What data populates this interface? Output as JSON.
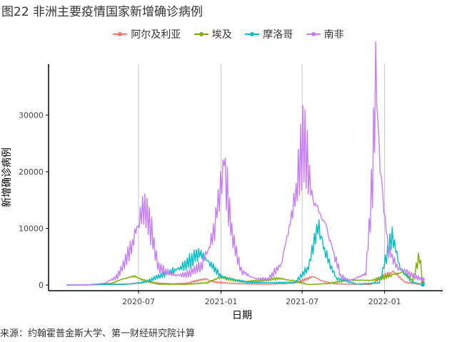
{
  "figure": {
    "title": "图22 非洲主要疫情国家新增确诊病例",
    "source": "来源：约翰霍普金斯大学、第一财经研究院计算"
  },
  "chart_data": {
    "type": "line",
    "xlabel": "日期",
    "ylabel": "新增确诊病例",
    "x_range": [
      "2020-01-22",
      "2022-03-27"
    ],
    "ylim": [
      -1000,
      39000
    ],
    "x_ticks": [
      {
        "date": "2020-07-01",
        "label": "2020-07"
      },
      {
        "date": "2021-01-01",
        "label": "2021-01"
      },
      {
        "date": "2021-07-01",
        "label": "2021-07"
      },
      {
        "date": "2022-01-01",
        "label": "2022-01"
      }
    ],
    "y_ticks": [
      0,
      10000,
      20000,
      30000
    ],
    "grid": "vertical major lines at x ticks",
    "legend_position": "top",
    "series": [
      {
        "name": "阿尔及利亚",
        "color": "#F8766D",
        "points": [
          [
            "2020-01-22",
            0
          ],
          [
            "2020-03-15",
            30
          ],
          [
            "2020-05-01",
            150
          ],
          [
            "2020-06-15",
            200
          ],
          [
            "2020-07-20",
            650
          ],
          [
            "2020-08-10",
            350
          ],
          [
            "2020-09-15",
            200
          ],
          [
            "2020-10-20",
            350
          ],
          [
            "2020-11-25",
            1100
          ],
          [
            "2020-12-20",
            500
          ],
          [
            "2021-02-01",
            250
          ],
          [
            "2021-04-15",
            150
          ],
          [
            "2021-06-15",
            350
          ],
          [
            "2021-07-25",
            1500
          ],
          [
            "2021-08-15",
            700
          ],
          [
            "2021-09-15",
            200
          ],
          [
            "2021-12-01",
            100
          ],
          [
            "2022-01-20",
            2500
          ],
          [
            "2022-02-15",
            500
          ],
          [
            "2022-03-27",
            50
          ]
        ]
      },
      {
        "name": "埃及",
        "color": "#7CAE00",
        "points": [
          [
            "2020-01-22",
            0
          ],
          [
            "2020-03-15",
            20
          ],
          [
            "2020-05-01",
            300
          ],
          [
            "2020-06-01",
            1200
          ],
          [
            "2020-06-20",
            1550
          ],
          [
            "2020-07-15",
            800
          ],
          [
            "2020-08-15",
            150
          ],
          [
            "2020-10-15",
            120
          ],
          [
            "2020-12-01",
            400
          ],
          [
            "2020-12-31",
            1400
          ],
          [
            "2021-02-15",
            600
          ],
          [
            "2021-04-01",
            800
          ],
          [
            "2021-05-10",
            1200
          ],
          [
            "2021-06-15",
            700
          ],
          [
            "2021-07-15",
            80
          ],
          [
            "2021-09-01",
            300
          ],
          [
            "2021-10-15",
            900
          ],
          [
            "2021-12-01",
            800
          ],
          [
            "2022-01-20",
            1800
          ],
          [
            "2022-02-10",
            2300
          ],
          [
            "2022-03-05",
            800
          ],
          [
            "2022-03-20",
            5500
          ],
          [
            "2022-03-27",
            400
          ]
        ]
      },
      {
        "name": "摩洛哥",
        "color": "#00BFC4",
        "points": [
          [
            "2020-01-22",
            0
          ],
          [
            "2020-04-01",
            80
          ],
          [
            "2020-06-01",
            100
          ],
          [
            "2020-07-15",
            500
          ],
          [
            "2020-08-15",
            1500
          ],
          [
            "2020-09-15",
            2500
          ],
          [
            "2020-10-15",
            3600
          ],
          [
            "2020-11-12",
            5800
          ],
          [
            "2020-12-05",
            4000
          ],
          [
            "2021-01-01",
            1500
          ],
          [
            "2021-03-01",
            450
          ],
          [
            "2021-05-01",
            400
          ],
          [
            "2021-06-15",
            500
          ],
          [
            "2021-07-15",
            3000
          ],
          [
            "2021-08-05",
            10500
          ],
          [
            "2021-08-25",
            5000
          ],
          [
            "2021-09-15",
            1200
          ],
          [
            "2021-11-01",
            150
          ],
          [
            "2021-12-20",
            400
          ],
          [
            "2022-01-05",
            5000
          ],
          [
            "2022-01-18",
            9000
          ],
          [
            "2022-02-05",
            3000
          ],
          [
            "2022-03-01",
            600
          ],
          [
            "2022-03-27",
            100
          ]
        ]
      },
      {
        "name": "南非",
        "color": "#C77CFF",
        "points": [
          [
            "2020-01-22",
            0
          ],
          [
            "2020-03-10",
            50
          ],
          [
            "2020-04-15",
            300
          ],
          [
            "2020-05-15",
            1500
          ],
          [
            "2020-06-15",
            6500
          ],
          [
            "2020-07-10",
            13500
          ],
          [
            "2020-07-25",
            11000
          ],
          [
            "2020-08-15",
            3000
          ],
          [
            "2020-09-15",
            1800
          ],
          [
            "2020-10-15",
            1800
          ],
          [
            "2020-11-20",
            3500
          ],
          [
            "2020-12-15",
            9000
          ],
          [
            "2021-01-08",
            21900
          ],
          [
            "2021-01-25",
            9000
          ],
          [
            "2021-02-15",
            2500
          ],
          [
            "2021-03-15",
            1200
          ],
          [
            "2021-04-15",
            1000
          ],
          [
            "2021-05-15",
            3500
          ],
          [
            "2021-06-15",
            15000
          ],
          [
            "2021-07-05",
            26400
          ],
          [
            "2021-07-25",
            15000
          ],
          [
            "2021-08-15",
            12000
          ],
          [
            "2021-09-05",
            7000
          ],
          [
            "2021-09-25",
            1500
          ],
          [
            "2021-10-15",
            800
          ],
          [
            "2021-11-20",
            2000
          ],
          [
            "2021-12-05",
            18000
          ],
          [
            "2021-12-12",
            37800
          ],
          [
            "2021-12-22",
            20000
          ],
          [
            "2022-01-10",
            6000
          ],
          [
            "2022-01-31",
            3000
          ],
          [
            "2022-02-20",
            2200
          ],
          [
            "2022-03-10",
            1500
          ],
          [
            "2022-03-27",
            1000
          ]
        ]
      }
    ]
  }
}
